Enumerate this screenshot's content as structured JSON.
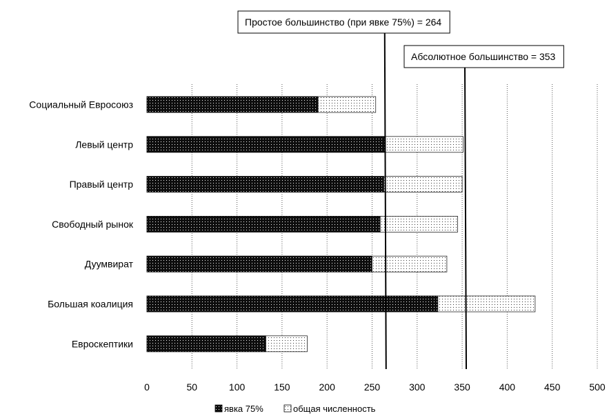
{
  "chart_data": {
    "type": "bar",
    "orientation": "horizontal",
    "stacked": "overlay",
    "categories": [
      "Социальный Евросоюз",
      "Левый центр",
      "Правый центр",
      "Свободный рынок",
      "Дуумвират",
      "Большая коалиция",
      "Евроскептики"
    ],
    "series": [
      {
        "name": "явка 75%",
        "values": [
          190,
          264,
          263,
          259,
          250,
          323,
          132
        ],
        "pattern": "dense-dots",
        "color": "#111111"
      },
      {
        "name": "общая численность",
        "values": [
          254,
          351,
          350,
          345,
          333,
          431,
          178
        ],
        "pattern": "sparse-dots",
        "color": "#ffffff"
      }
    ],
    "xlim": [
      0,
      500
    ],
    "xticks": [
      "0",
      "50",
      "100",
      "150",
      "200",
      "250",
      "300",
      "350",
      "400",
      "450",
      "500"
    ],
    "grid": "vertical-dotted",
    "legend_position": "bottom",
    "reference_lines": [
      {
        "value": 264,
        "label": "Простое большинство (при явке 75%) = 264"
      },
      {
        "value": 353,
        "label": "Абсолютное большинство = 353"
      }
    ]
  }
}
